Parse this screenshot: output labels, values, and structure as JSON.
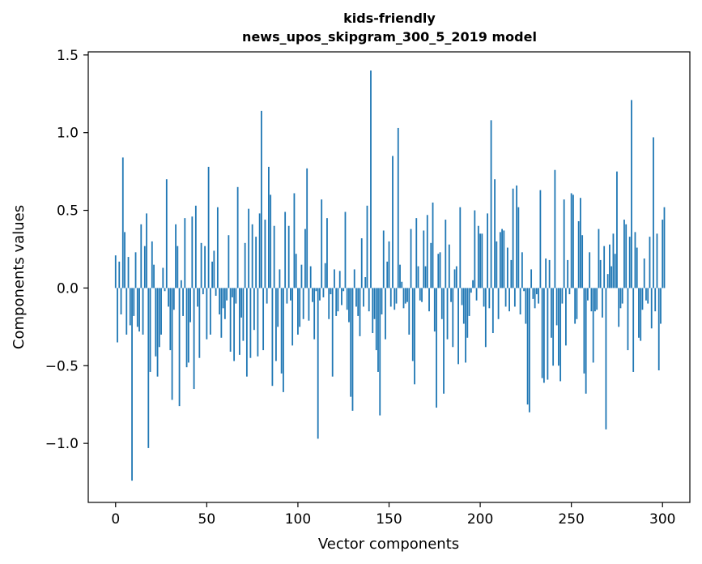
{
  "chart_data": {
    "type": "bar",
    "title_lines": [
      "kids-friendly",
      "news_upos_skipgram_300_5_2019 model"
    ],
    "xlabel": "Vector components",
    "ylabel": "Components values",
    "xlim": [
      -15,
      315
    ],
    "ylim": [
      -1.38,
      1.52
    ],
    "x_ticks": [
      0,
      50,
      100,
      150,
      200,
      250,
      300
    ],
    "y_ticks": [
      -1.0,
      -0.5,
      0.0,
      0.5,
      1.0,
      1.5
    ],
    "y_tick_labels": [
      "−1.0",
      "−0.5",
      "0.0",
      "0.5",
      "1.0",
      "1.5"
    ],
    "bar_color": "#1f77b4",
    "grid": false,
    "legend": "none",
    "values": [
      0.21,
      -0.35,
      0.17,
      -0.17,
      0.84,
      0.36,
      -0.3,
      0.2,
      -0.24,
      -1.24,
      -0.18,
      0.23,
      -0.25,
      -0.28,
      0.41,
      -0.3,
      0.27,
      0.48,
      -1.03,
      -0.54,
      0.3,
      0.15,
      -0.44,
      -0.57,
      -0.38,
      -0.3,
      0.13,
      -0.02,
      0.7,
      -0.12,
      -0.4,
      -0.72,
      -0.14,
      0.41,
      0.27,
      -0.76,
      0.05,
      -0.18,
      0.45,
      -0.51,
      -0.48,
      -0.22,
      0.46,
      -0.65,
      0.53,
      -0.12,
      -0.45,
      0.29,
      -0.04,
      0.27,
      -0.33,
      0.78,
      -0.3,
      0.17,
      0.24,
      -0.05,
      0.52,
      -0.17,
      -0.32,
      -0.13,
      -0.2,
      -0.08,
      0.34,
      -0.41,
      -0.06,
      -0.47,
      -0.1,
      0.65,
      -0.43,
      -0.19,
      -0.34,
      0.29,
      -0.57,
      0.51,
      -0.45,
      0.41,
      -0.27,
      0.33,
      -0.44,
      0.48,
      1.14,
      -0.4,
      0.44,
      -0.1,
      0.78,
      0.6,
      -0.63,
      0.4,
      -0.47,
      -0.25,
      0.12,
      -0.55,
      -0.67,
      0.49,
      -0.1,
      0.4,
      -0.08,
      -0.37,
      0.61,
      0.22,
      -0.3,
      -0.25,
      0.15,
      -0.2,
      0.38,
      0.77,
      -0.21,
      0.14,
      -0.09,
      -0.33,
      -0.02,
      -0.97,
      -0.08,
      0.57,
      -0.06,
      0.16,
      0.45,
      -0.2,
      -0.04,
      -0.57,
      0.12,
      -0.18,
      -0.15,
      0.11,
      -0.11,
      -0.02,
      0.49,
      -0.14,
      -0.22,
      -0.7,
      -0.79,
      0.12,
      -0.12,
      -0.18,
      -0.31,
      0.32,
      -0.12,
      0.07,
      0.53,
      -0.15,
      1.4,
      -0.29,
      -0.2,
      -0.4,
      -0.54,
      -0.82,
      -0.17,
      0.37,
      -0.33,
      0.17,
      0.3,
      -0.12,
      0.85,
      -0.14,
      -0.1,
      1.03,
      0.15,
      0.04,
      -0.13,
      -0.1,
      -0.09,
      -0.3,
      0.38,
      -0.47,
      -0.62,
      0.45,
      0.14,
      -0.08,
      -0.09,
      0.37,
      0.14,
      0.47,
      -0.15,
      0.29,
      0.55,
      -0.28,
      -0.77,
      0.22,
      0.23,
      -0.2,
      -0.68,
      0.44,
      -0.33,
      0.28,
      -0.09,
      -0.38,
      0.12,
      0.14,
      -0.49,
      0.52,
      -0.11,
      -0.23,
      -0.48,
      -0.32,
      -0.18,
      -0.03,
      0.05,
      0.5,
      -0.08,
      0.4,
      0.35,
      0.35,
      -0.12,
      -0.38,
      0.48,
      -0.13,
      1.08,
      -0.29,
      0.7,
      0.3,
      -0.2,
      0.36,
      0.38,
      0.37,
      -0.12,
      0.26,
      -0.15,
      0.18,
      0.64,
      -0.12,
      0.66,
      0.52,
      -0.17,
      0.23,
      -0.02,
      -0.23,
      -0.75,
      -0.8,
      0.12,
      -0.07,
      -0.13,
      -0.04,
      -0.1,
      0.63,
      -0.58,
      -0.61,
      0.19,
      -0.59,
      0.18,
      -0.32,
      -0.5,
      0.76,
      -0.24,
      -0.5,
      -0.6,
      -0.1,
      0.57,
      -0.37,
      0.18,
      -0.04,
      0.61,
      0.6,
      -0.23,
      -0.2,
      0.43,
      0.58,
      0.34,
      -0.55,
      -0.68,
      -0.08,
      0.23,
      -0.15,
      -0.48,
      -0.15,
      -0.14,
      0.38,
      0.18,
      -0.19,
      0.27,
      -0.91,
      0.09,
      0.28,
      0.14,
      0.35,
      0.22,
      0.75,
      -0.25,
      -0.13,
      -0.1,
      0.44,
      0.41,
      -0.4,
      0.33,
      1.21,
      -0.54,
      0.36,
      0.26,
      -0.32,
      -0.34,
      -0.14,
      0.19,
      -0.08,
      -0.1,
      0.33,
      -0.26,
      0.97,
      -0.15,
      0.35,
      -0.53,
      -0.23,
      0.44,
      0.52
    ]
  }
}
